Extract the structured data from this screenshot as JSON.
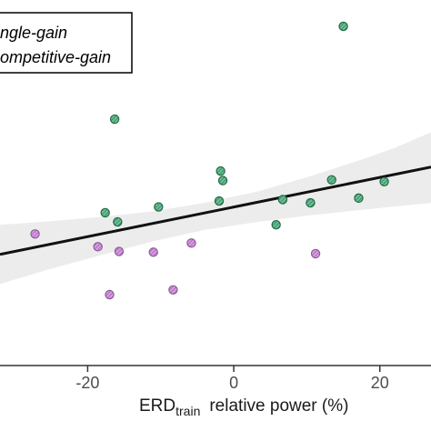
{
  "chart_data": {
    "type": "scatter",
    "xlabel": {
      "main": "ERD",
      "subscript": "train",
      "rest": "relative power (%)"
    },
    "x_ticks": [
      {
        "value": -20,
        "label": "-20"
      },
      {
        "value": 0,
        "label": "0"
      },
      {
        "value": 20,
        "label": "20"
      }
    ],
    "xlim": [
      -32,
      27
    ],
    "ylim": [
      0,
      100
    ],
    "grid": false,
    "legend": {
      "placement": "top-left",
      "entries": [
        {
          "label": "ngle-gain",
          "series": 0
        },
        {
          "label": "ompetitive-gain",
          "series": 1
        }
      ]
    },
    "series": [
      {
        "color": "#d89be0",
        "hatch": "#8e5a9c",
        "points": [
          {
            "x": -27.2,
            "y": 36.0
          },
          {
            "x": -18.6,
            "y": 32.5
          },
          {
            "x": -15.7,
            "y": 31.2
          },
          {
            "x": -11.0,
            "y": 31.0
          },
          {
            "x": -5.8,
            "y": 33.5
          },
          {
            "x": -17.0,
            "y": 19.4
          },
          {
            "x": -8.3,
            "y": 20.7
          },
          {
            "x": 11.2,
            "y": 30.6
          }
        ]
      },
      {
        "color": "#6fbf94",
        "hatch": "#1f6b49",
        "points": [
          {
            "x": 15.0,
            "y": 92.8
          },
          {
            "x": -16.3,
            "y": 67.4
          },
          {
            "x": -1.8,
            "y": 53.2
          },
          {
            "x": -1.5,
            "y": 50.6
          },
          {
            "x": 13.4,
            "y": 50.8
          },
          {
            "x": 20.6,
            "y": 50.3
          },
          {
            "x": 17.1,
            "y": 45.8
          },
          {
            "x": -17.6,
            "y": 41.8
          },
          {
            "x": -15.9,
            "y": 39.3
          },
          {
            "x": -10.3,
            "y": 43.4
          },
          {
            "x": -2.0,
            "y": 45.0
          },
          {
            "x": 6.7,
            "y": 45.4
          },
          {
            "x": 10.5,
            "y": 44.5
          },
          {
            "x": 5.8,
            "y": 38.5
          }
        ]
      }
    ],
    "fit": {
      "line": [
        {
          "x": -32,
          "y": 30.4
        },
        {
          "x": 27,
          "y": 54.3
        }
      ],
      "band": [
        {
          "x": -32,
          "lo": 22.3,
          "hi": 38.5
        },
        {
          "x": -25,
          "lo": 26.5,
          "hi": 39.5
        },
        {
          "x": -18,
          "lo": 30.3,
          "hi": 40.7
        },
        {
          "x": -11,
          "lo": 34.0,
          "hi": 42.2
        },
        {
          "x": -4,
          "lo": 37.1,
          "hi": 44.5
        },
        {
          "x": 3,
          "lo": 39.2,
          "hi": 47.5
        },
        {
          "x": 10,
          "lo": 41.0,
          "hi": 51.5
        },
        {
          "x": 17,
          "lo": 42.5,
          "hi": 56.0
        },
        {
          "x": 22,
          "lo": 43.5,
          "hi": 59.5
        },
        {
          "x": 27,
          "lo": 44.5,
          "hi": 63.8
        }
      ],
      "line_color": "#111111",
      "band_color": "#ececec"
    },
    "axis_color": "#333333"
  }
}
